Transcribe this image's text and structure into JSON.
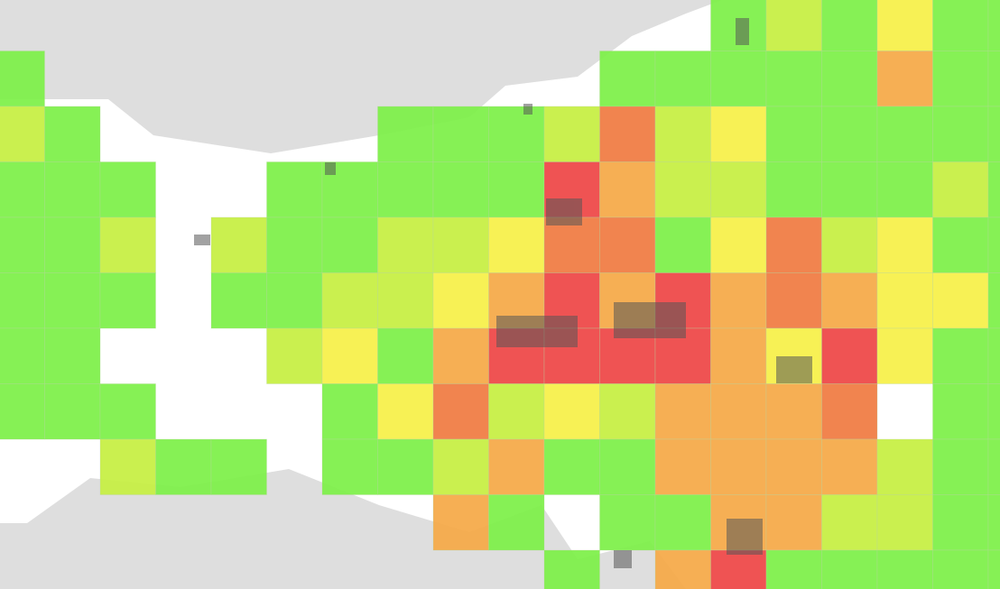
{
  "map": {
    "grid": [
      [
        null,
        null,
        null,
        null,
        null,
        null,
        null,
        null,
        null,
        null,
        null,
        null,
        null,
        "#7cf046",
        "#c5ef40",
        "#7cf046",
        "#f6f046",
        "#7cf046",
        "#7cf046"
      ],
      [
        "#7cf046",
        null,
        null,
        null,
        null,
        null,
        null,
        null,
        null,
        null,
        null,
        "#7cf046",
        "#7cf046",
        "#7cf046",
        "#7cf046",
        "#7cf046",
        "#f5a845",
        "#7cf046",
        "#7cf046"
      ],
      [
        "#c5ef40",
        "#7cf046",
        null,
        null,
        null,
        null,
        null,
        "#7cf046",
        "#7cf046",
        "#7cf046",
        "#c5ef40",
        "#f07a40",
        "#c5ef40",
        "#f6f046",
        "#7cf046",
        "#7cf046",
        "#7cf046",
        "#7cf046",
        "#7cf046"
      ],
      [
        "#7cf046",
        "#7cf046",
        "#7cf046",
        null,
        null,
        "#7cf046",
        "#7cf046",
        "#7cf046",
        "#7cf046",
        "#7cf046",
        "#ee4444",
        "#f5a845",
        "#c5ef40",
        "#c5ef40",
        "#7cf046",
        "#7cf046",
        "#7cf046",
        "#c5ef40",
        "#7cf046"
      ],
      [
        "#7cf046",
        "#7cf046",
        "#c5ef40",
        null,
        "#c5ef40",
        "#7cf046",
        "#7cf046",
        "#c5ef40",
        "#c5ef40",
        "#f6f046",
        "#f07a40",
        "#f07a40",
        "#7cf046",
        "#f6f046",
        "#f07a40",
        "#c5ef40",
        "#f6f046",
        "#7cf046",
        "#7cf046"
      ],
      [
        "#7cf046",
        "#7cf046",
        "#7cf046",
        null,
        "#7cf046",
        "#7cf046",
        "#c5ef40",
        "#c5ef40",
        "#f6f046",
        "#f5a845",
        "#ee4444",
        "#f5a845",
        "#ee4444",
        "#f5a845",
        "#f07a40",
        "#f5a845",
        "#f6f046",
        "#f6f046",
        "#7cf046"
      ],
      [
        "#7cf046",
        "#7cf046",
        null,
        null,
        null,
        "#c5ef40",
        "#f6f046",
        "#7cf046",
        "#f5a845",
        "#ee4444",
        "#ee4444",
        "#ee4444",
        "#ee4444",
        "#f5a845",
        "#f6f046",
        "#ee4444",
        "#f6f046",
        "#7cf046",
        "#7cf046"
      ],
      [
        "#7cf046",
        "#7cf046",
        "#7cf046",
        null,
        null,
        null,
        "#7cf046",
        "#f6f046",
        "#f07a40",
        "#c5ef40",
        "#f6f046",
        "#c5ef40",
        "#f5a845",
        "#f5a845",
        "#f5a845",
        "#f07a40",
        null,
        "#7cf046",
        "#7cf046"
      ],
      [
        null,
        null,
        "#c5ef40",
        "#7cf046",
        "#7cf046",
        null,
        "#7cf046",
        "#7cf046",
        "#c5ef40",
        "#f5a845",
        "#7cf046",
        "#7cf046",
        "#f5a845",
        "#f5a845",
        "#f5a845",
        "#f5a845",
        "#c5ef40",
        "#7cf046",
        "#7cf046"
      ],
      [
        null,
        null,
        null,
        null,
        null,
        null,
        null,
        null,
        "#f5a845",
        "#7cf046",
        null,
        "#7cf046",
        "#7cf046",
        "#f5a845",
        "#f5a845",
        "#c5ef40",
        "#c5ef40",
        "#7cf046",
        "#7cf046"
      ],
      [
        null,
        null,
        null,
        null,
        null,
        null,
        null,
        null,
        null,
        null,
        "#7cf046",
        null,
        "#f5a845",
        "#ee4444",
        "#7cf046",
        "#7cf046",
        "#7cf046",
        "#7cf046",
        "#7cf046"
      ]
    ]
  }
}
